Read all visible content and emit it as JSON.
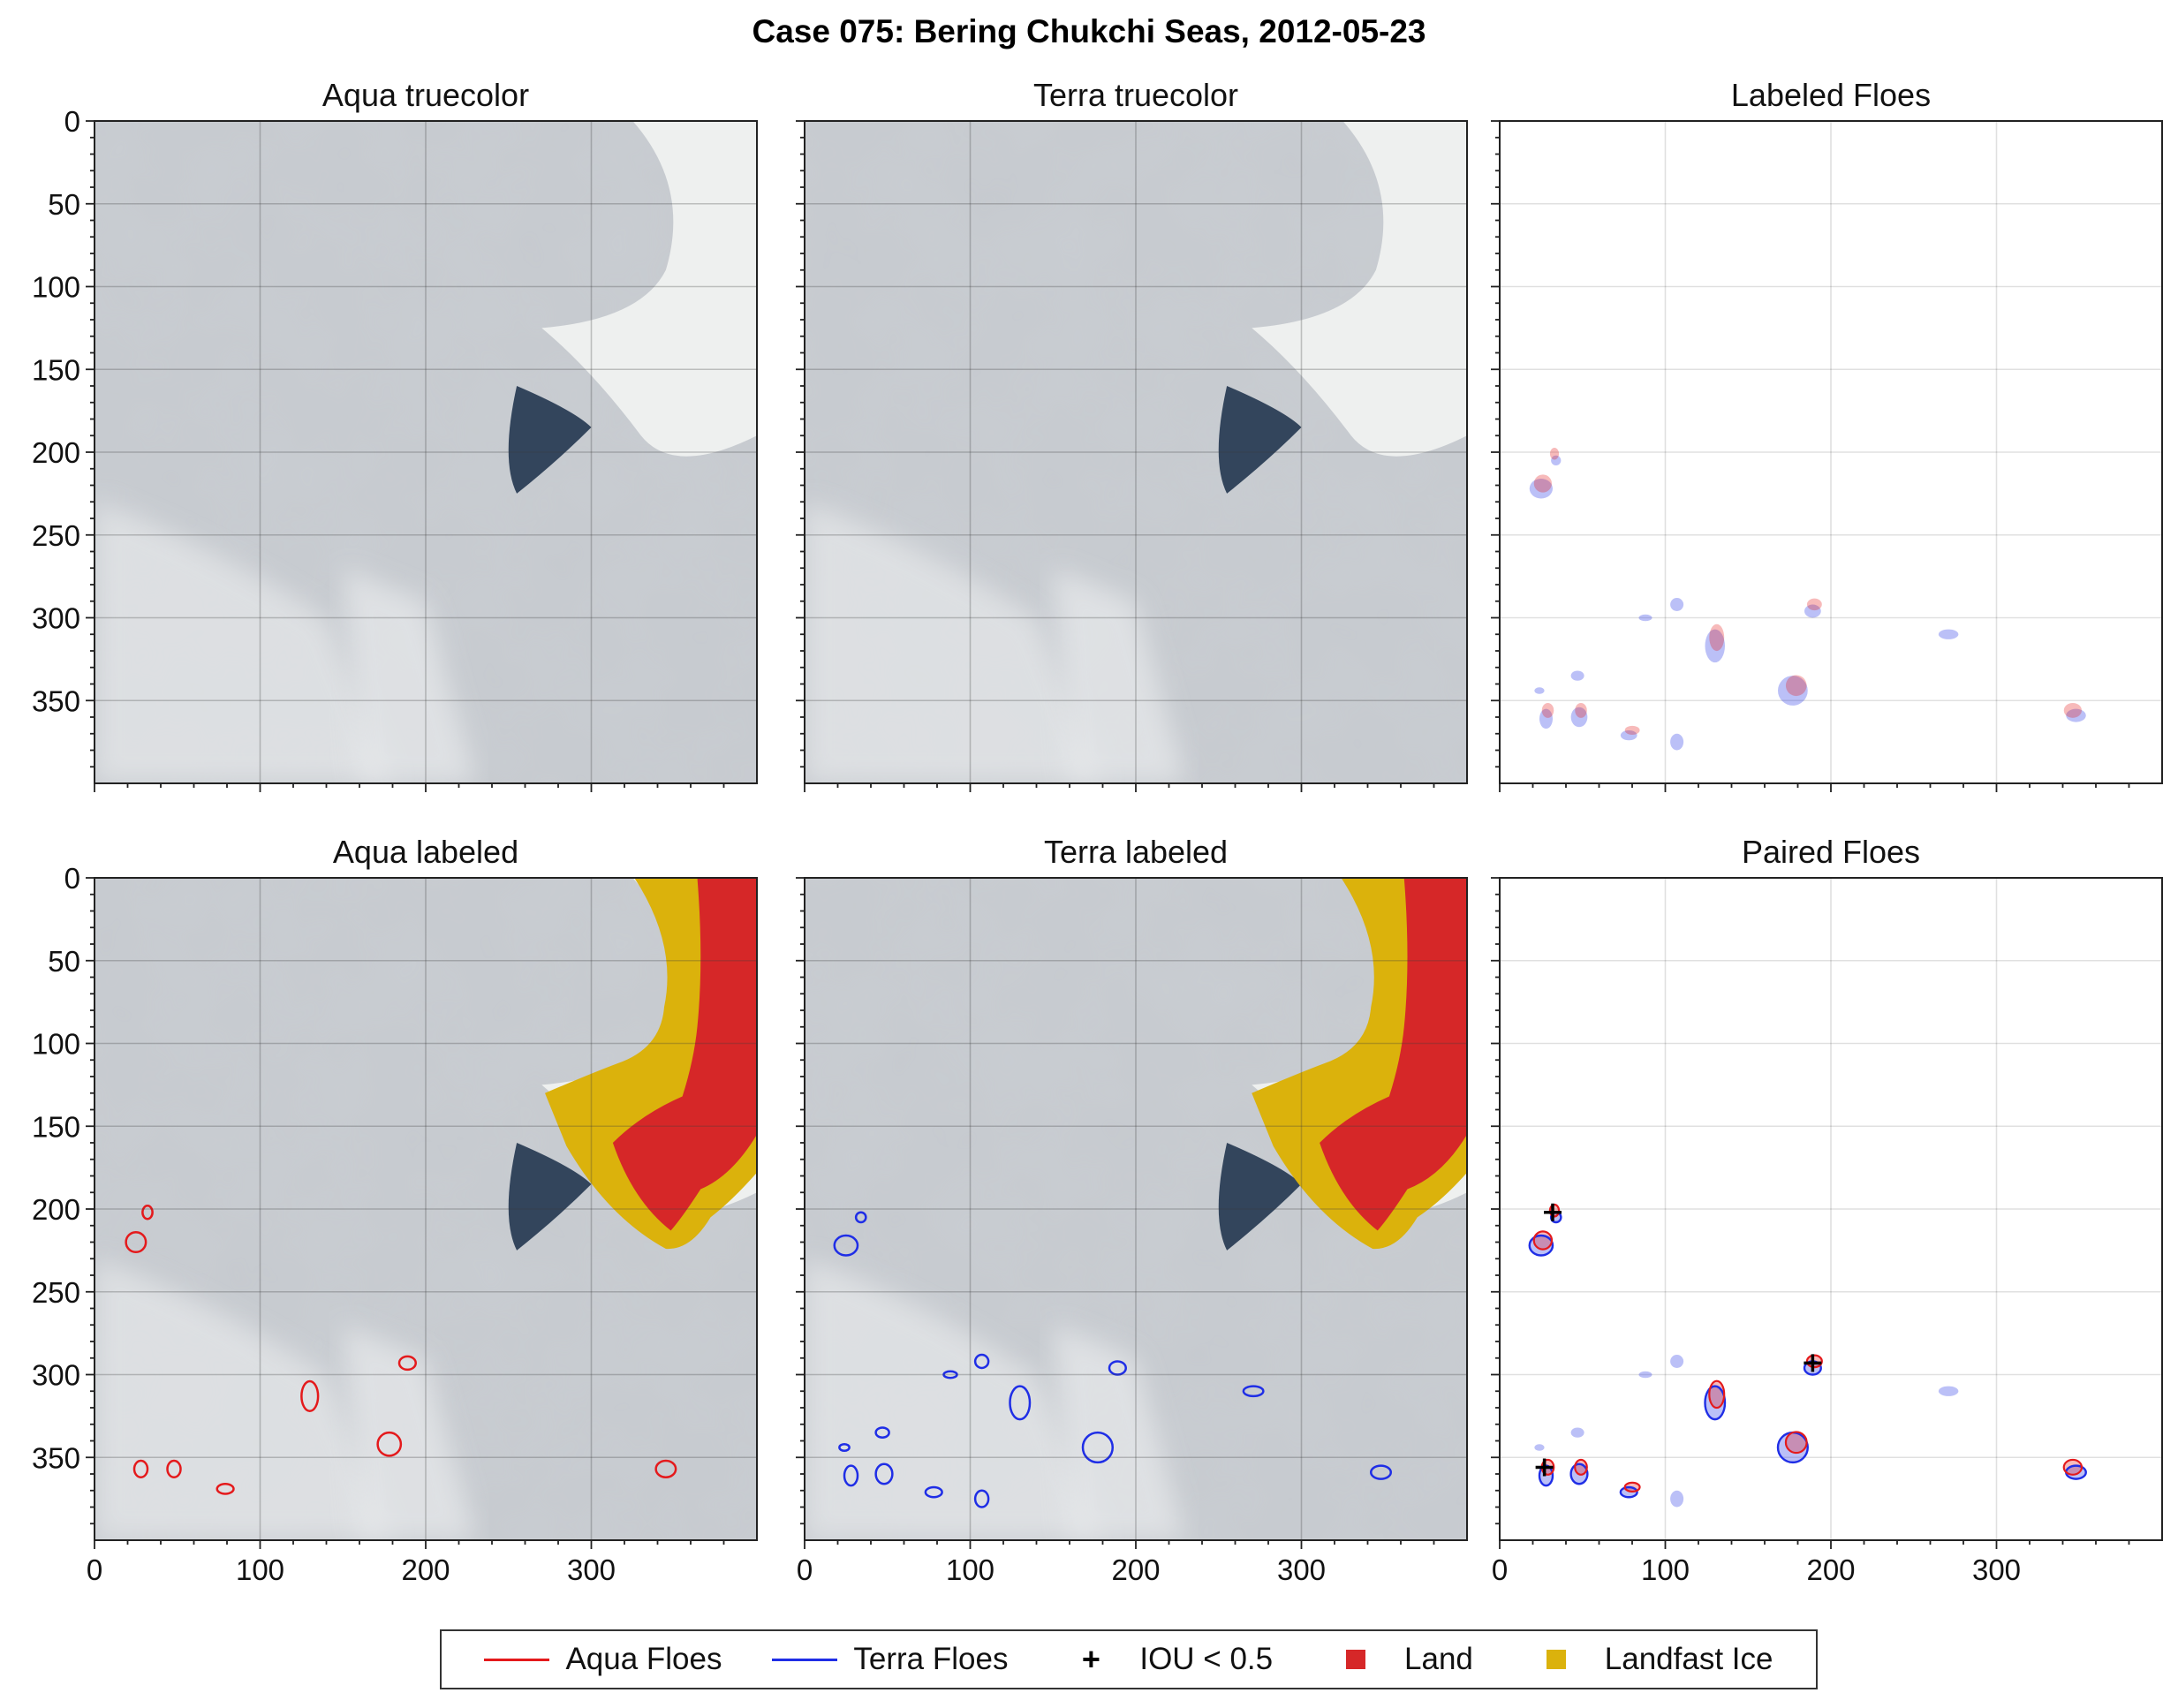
{
  "figure_title": "Case 075: Bering Chukchi Seas, 2012-05-23",
  "colors": {
    "aqua": "#e41a1c",
    "terra": "#1f2ee6",
    "land": "#d62728",
    "landfast_ice": "#dbb20c",
    "iou_marker": "#000000",
    "sea_ice_background": "#c9cdd2",
    "open_water": "#33455c"
  },
  "legend": {
    "items": [
      {
        "label": "Aqua Floes",
        "symbol": "line",
        "color": "#e41a1c"
      },
      {
        "label": "Terra Floes",
        "symbol": "line",
        "color": "#1f2ee6"
      },
      {
        "label": "IOU < 0.5",
        "symbol": "plus",
        "color": "#000000"
      },
      {
        "label": "Land",
        "symbol": "square",
        "color": "#d62728"
      },
      {
        "label": "Landfast Ice",
        "symbol": "square",
        "color": "#dbb20c"
      }
    ]
  },
  "chart_data": [
    {
      "type": "image",
      "title": "Aqua truecolor",
      "xlim": [
        0,
        400
      ],
      "ylim": [
        400,
        0
      ],
      "xticks": [
        0,
        100,
        200,
        300
      ],
      "yticks": [
        0,
        50,
        100,
        150,
        200,
        250,
        300,
        350
      ],
      "grid": true,
      "layers": [
        "truecolor"
      ]
    },
    {
      "type": "image",
      "title": "Terra truecolor",
      "xlim": [
        0,
        400
      ],
      "ylim": [
        400,
        0
      ],
      "xticks": [
        0,
        100,
        200,
        300
      ],
      "yticks": [
        0,
        50,
        100,
        150,
        200,
        250,
        300,
        350
      ],
      "grid": true,
      "layers": [
        "truecolor"
      ]
    },
    {
      "type": "scatter",
      "title": "Labeled Floes",
      "xlim": [
        0,
        400
      ],
      "ylim": [
        400,
        0
      ],
      "xticks": [
        0,
        100,
        200,
        300
      ],
      "yticks": [
        0,
        50,
        100,
        150,
        200,
        250,
        300,
        350
      ],
      "grid": true,
      "series": [
        {
          "name": "Aqua Floes",
          "style": "fill",
          "floes": [
            [
              32,
              202,
              3,
              4
            ],
            [
              25,
              220,
              6,
              6
            ],
            [
              189,
              293,
              5,
              4
            ],
            [
              130,
              313,
              5,
              9
            ],
            [
              178,
              342,
              7,
              7
            ],
            [
              28,
              357,
              4,
              5
            ],
            [
              48,
              357,
              4,
              5
            ],
            [
              79,
              369,
              5,
              3
            ],
            [
              345,
              357,
              6,
              5
            ]
          ]
        },
        {
          "name": "Terra Floes",
          "style": "fill",
          "floes": [
            [
              34,
              205,
              3,
              3
            ],
            [
              25,
              222,
              7,
              6
            ],
            [
              88,
              300,
              4,
              2
            ],
            [
              107,
              292,
              4,
              4
            ],
            [
              189,
              296,
              5,
              4
            ],
            [
              271,
              310,
              6,
              3
            ],
            [
              130,
              317,
              6,
              10
            ],
            [
              177,
              344,
              9,
              9
            ],
            [
              47,
              335,
              4,
              3
            ],
            [
              24,
              344,
              3,
              2
            ],
            [
              28,
              361,
              4,
              6
            ],
            [
              48,
              360,
              5,
              6
            ],
            [
              78,
              371,
              5,
              3
            ],
            [
              107,
              375,
              4,
              5
            ],
            [
              348,
              359,
              6,
              4
            ]
          ]
        }
      ]
    },
    {
      "type": "image",
      "title": "Aqua labeled",
      "xlim": [
        0,
        400
      ],
      "ylim": [
        400,
        0
      ],
      "xticks": [
        0,
        100,
        200,
        300
      ],
      "yticks": [
        0,
        50,
        100,
        150,
        200,
        250,
        300,
        350
      ],
      "grid": true,
      "layers": [
        "truecolor",
        "Land",
        "Landfast Ice",
        "Aqua Floes"
      ]
    },
    {
      "type": "image",
      "title": "Terra labeled",
      "xlim": [
        0,
        400
      ],
      "ylim": [
        400,
        0
      ],
      "xticks": [
        0,
        100,
        200,
        300
      ],
      "yticks": [
        0,
        50,
        100,
        150,
        200,
        250,
        300,
        350
      ],
      "grid": true,
      "layers": [
        "truecolor",
        "Land",
        "Landfast Ice",
        "Terra Floes"
      ]
    },
    {
      "type": "scatter",
      "title": "Paired Floes",
      "xlim": [
        0,
        400
      ],
      "ylim": [
        400,
        0
      ],
      "xticks": [
        0,
        100,
        200,
        300
      ],
      "yticks": [
        0,
        50,
        100,
        150,
        200,
        250,
        300,
        350
      ],
      "grid": true,
      "series": [
        {
          "name": "Aqua Floes",
          "style": "outline"
        },
        {
          "name": "Terra Floes",
          "style": "outline"
        },
        {
          "name": "IOU < 0.5",
          "style": "marker",
          "points": [
            [
              32,
              202
            ],
            [
              27,
              356
            ],
            [
              189,
              293
            ]
          ]
        }
      ]
    }
  ]
}
